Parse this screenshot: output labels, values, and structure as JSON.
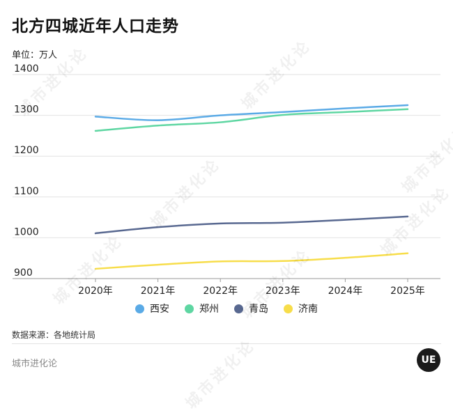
{
  "title": "北方四城近年人口走势",
  "unit_label": "单位：万人",
  "source": "数据来源：各地统计局",
  "brand": "城市进化论",
  "logo_text": "UE",
  "watermark": "城市进化论",
  "colors": {
    "xian": "#5AAAE6",
    "zhengzhou": "#5ED6A2",
    "qingdao": "#586890",
    "jinan": "#F7DD4A",
    "grid": "#e2e2e2"
  },
  "chart_data": {
    "type": "line",
    "title": "北方四城近年人口走势",
    "ylabel": "单位：万人",
    "x": [
      "2020年",
      "2021年",
      "2022年",
      "2023年",
      "2024年",
      "2025年"
    ],
    "ylim": [
      900,
      1400
    ],
    "yticks": [
      900,
      1000,
      1100,
      1200,
      1300,
      1400
    ],
    "grid": true,
    "legend_position": "bottom",
    "series": [
      {
        "name": "西安",
        "color_key": "xian",
        "values": [
          1297,
          1288,
          1300,
          1308,
          1317,
          1325
        ]
      },
      {
        "name": "郑州",
        "color_key": "zhengzhou",
        "values": [
          1262,
          1275,
          1283,
          1301,
          1308,
          1315
        ]
      },
      {
        "name": "青岛",
        "color_key": "qingdao",
        "values": [
          1011,
          1026,
          1035,
          1037,
          1044,
          1052
        ]
      },
      {
        "name": "济南",
        "color_key": "jinan",
        "values": [
          924,
          934,
          942,
          943,
          951,
          962
        ]
      }
    ]
  }
}
